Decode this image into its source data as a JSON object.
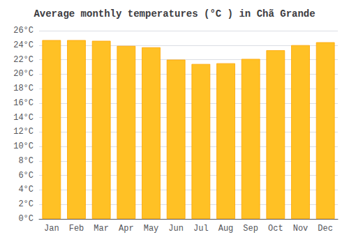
{
  "chart_data": {
    "type": "bar",
    "title": "Average monthly temperatures (°C ) in Chã Grande",
    "categories": [
      "Jan",
      "Feb",
      "Mar",
      "Apr",
      "May",
      "Jun",
      "Jul",
      "Aug",
      "Sep",
      "Oct",
      "Nov",
      "Dec"
    ],
    "values": [
      24.7,
      24.7,
      24.6,
      23.9,
      23.7,
      22.0,
      21.4,
      21.5,
      22.1,
      23.3,
      24.0,
      24.4
    ],
    "color": "#FFC125",
    "ylim": [
      0,
      26
    ],
    "yticks": [
      {
        "value": 0,
        "label": "0°C"
      },
      {
        "value": 2,
        "label": "2°C"
      },
      {
        "value": 4,
        "label": "4°C"
      },
      {
        "value": 6,
        "label": "6°C"
      },
      {
        "value": 8,
        "label": "8°C"
      },
      {
        "value": 10,
        "label": "10°C"
      },
      {
        "value": 12,
        "label": "12°C"
      },
      {
        "value": 14,
        "label": "14°C"
      },
      {
        "value": 16,
        "label": "16°C"
      },
      {
        "value": 18,
        "label": "18°C"
      },
      {
        "value": 20,
        "label": "20°C"
      },
      {
        "value": 22,
        "label": "22°C"
      },
      {
        "value": 24,
        "label": "24°C"
      },
      {
        "value": 26,
        "label": "26°C"
      }
    ],
    "grid": true
  }
}
